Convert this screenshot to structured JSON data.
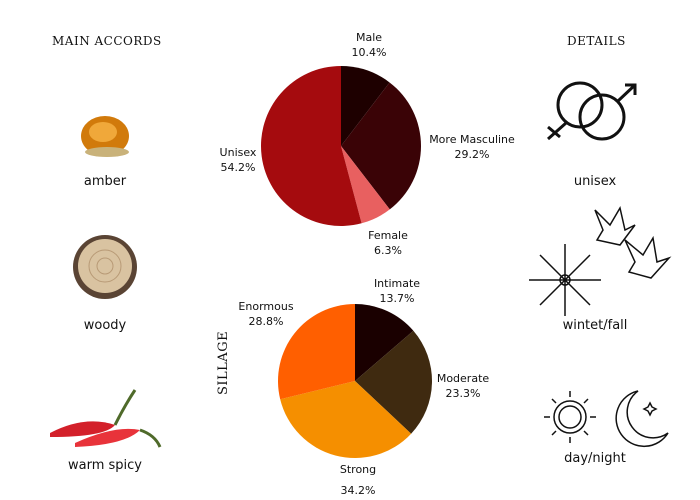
{
  "headers": {
    "accords": "MAIN ACCORDS",
    "details": "DETAILS",
    "sillage": "SILLAGE"
  },
  "accords": [
    {
      "label": "amber",
      "icon": "amber-icon"
    },
    {
      "label": "woody",
      "icon": "wood-slice-icon"
    },
    {
      "label": "warm spicy",
      "icon": "chili-pepper-icon"
    }
  ],
  "details": [
    {
      "label": "unisex",
      "icon": "gender-symbols-icon"
    },
    {
      "label": "wintet/fall",
      "icon": "snowflake-leaves-icon"
    },
    {
      "label": "day/night",
      "icon": "sun-moon-icon"
    }
  ],
  "chart_data": [
    {
      "type": "pie",
      "title": "",
      "slices": [
        {
          "name": "Male",
          "value": 10.4,
          "label": "10.4%",
          "color": "#1e0000"
        },
        {
          "name": "More Masculine",
          "value": 29.2,
          "label": "29.2%",
          "color": "#3a0306"
        },
        {
          "name": "Female",
          "value": 6.3,
          "label": "6.3%",
          "color": "#e86060"
        },
        {
          "name": "Unisex",
          "value": 54.2,
          "label": "54.2%",
          "color": "#a50b0e"
        }
      ]
    },
    {
      "type": "pie",
      "title": "SILLAGE",
      "slices": [
        {
          "name": "Intimate",
          "value": 13.7,
          "label": "13.7%",
          "color": "#1a0000"
        },
        {
          "name": "Moderate",
          "value": 23.3,
          "label": "23.3%",
          "color": "#3f2a10"
        },
        {
          "name": "Strong",
          "value": 34.2,
          "label": "34.2%",
          "color": "#f58f00"
        },
        {
          "name": "Enormous",
          "value": 28.8,
          "label": "28.8%",
          "color": "#ff5f00"
        }
      ]
    }
  ]
}
